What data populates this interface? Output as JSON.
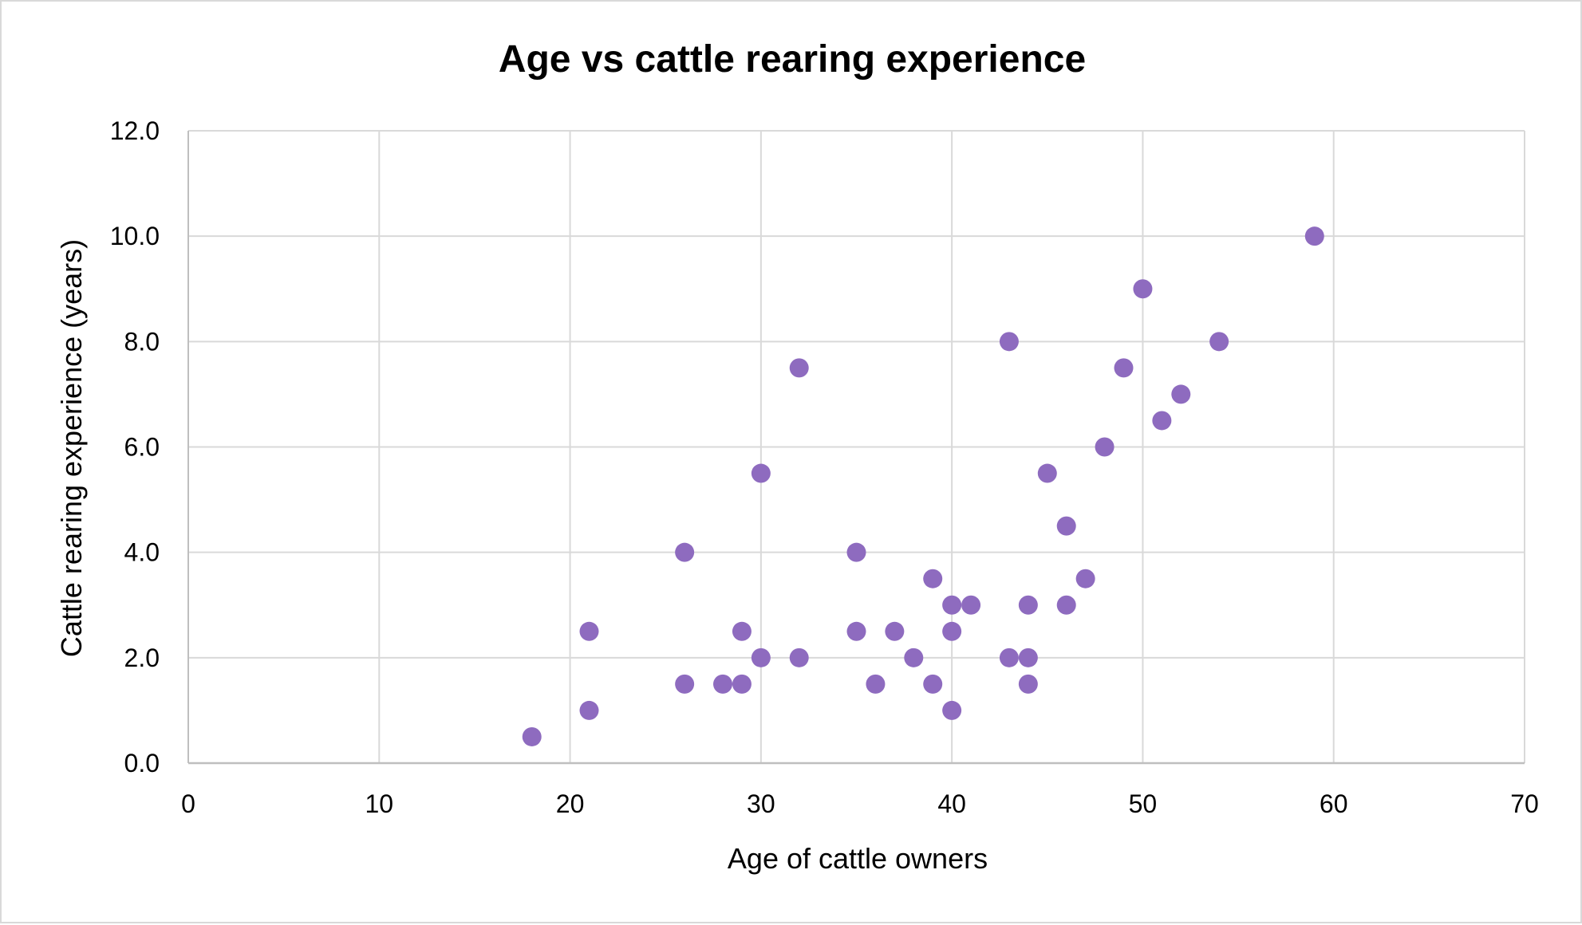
{
  "chart_data": {
    "type": "scatter",
    "title": "Age vs cattle rearing experience",
    "xlabel": "Age of cattle owners",
    "ylabel": "Cattle rearing experience (years)",
    "xlim": [
      0,
      70
    ],
    "ylim": [
      0,
      12
    ],
    "x_ticks": [
      "0",
      "10",
      "20",
      "30",
      "40",
      "50",
      "60",
      "70"
    ],
    "y_ticks": [
      "0.0",
      "2.0",
      "4.0",
      "6.0",
      "8.0",
      "10.0",
      "12.0"
    ],
    "grid": true,
    "legend": "none",
    "marker_color": "#8e6bbf",
    "points": [
      {
        "x": 18,
        "y": 0.5
      },
      {
        "x": 21,
        "y": 2.5
      },
      {
        "x": 21,
        "y": 1.0
      },
      {
        "x": 26,
        "y": 4.0
      },
      {
        "x": 26,
        "y": 1.5
      },
      {
        "x": 28,
        "y": 1.5
      },
      {
        "x": 29,
        "y": 2.5
      },
      {
        "x": 29,
        "y": 1.5
      },
      {
        "x": 30,
        "y": 5.5
      },
      {
        "x": 30,
        "y": 2.0
      },
      {
        "x": 32,
        "y": 7.5
      },
      {
        "x": 32,
        "y": 2.0
      },
      {
        "x": 35,
        "y": 4.0
      },
      {
        "x": 35,
        "y": 2.5
      },
      {
        "x": 36,
        "y": 1.5
      },
      {
        "x": 37,
        "y": 2.5
      },
      {
        "x": 38,
        "y": 2.0
      },
      {
        "x": 39,
        "y": 3.5
      },
      {
        "x": 39,
        "y": 1.5
      },
      {
        "x": 40,
        "y": 3.0
      },
      {
        "x": 40,
        "y": 2.5
      },
      {
        "x": 40,
        "y": 1.0
      },
      {
        "x": 41,
        "y": 3.0
      },
      {
        "x": 43,
        "y": 8.0
      },
      {
        "x": 43,
        "y": 2.0
      },
      {
        "x": 44,
        "y": 3.0
      },
      {
        "x": 44,
        "y": 2.0
      },
      {
        "x": 44,
        "y": 1.5
      },
      {
        "x": 45,
        "y": 5.5
      },
      {
        "x": 46,
        "y": 4.5
      },
      {
        "x": 46,
        "y": 3.0
      },
      {
        "x": 47,
        "y": 3.5
      },
      {
        "x": 48,
        "y": 6.0
      },
      {
        "x": 49,
        "y": 7.5
      },
      {
        "x": 50,
        "y": 9.0
      },
      {
        "x": 51,
        "y": 6.5
      },
      {
        "x": 52,
        "y": 7.0
      },
      {
        "x": 54,
        "y": 8.0
      },
      {
        "x": 59,
        "y": 10.0
      }
    ]
  },
  "colors": {
    "grid": "#d9d9d9",
    "axis": "#bfbfbf",
    "marker": "#8e6bbf"
  }
}
